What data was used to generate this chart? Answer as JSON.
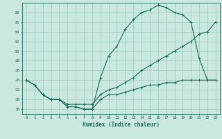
{
  "xlabel": "Humidex (Indice chaleur)",
  "ylabel": "",
  "bg_color": "#c8e8e0",
  "line_color": "#1a6b5a",
  "grid_color": "#a0c8c0",
  "xlim": [
    -0.5,
    23.5
  ],
  "ylim": [
    17,
    40
  ],
  "yticks": [
    18,
    20,
    22,
    24,
    26,
    28,
    30,
    32,
    34,
    36,
    38
  ],
  "xticks": [
    0,
    1,
    2,
    3,
    4,
    5,
    6,
    7,
    8,
    9,
    10,
    11,
    12,
    13,
    14,
    15,
    16,
    17,
    18,
    19,
    20,
    21,
    22,
    23
  ],
  "line_max": {
    "x": [
      0,
      1,
      2,
      3,
      4,
      5,
      6,
      7,
      8,
      9,
      10,
      11,
      12,
      13,
      14,
      15,
      16,
      17,
      18,
      19,
      20,
      21,
      22,
      23
    ],
    "y": [
      24,
      23,
      21,
      20,
      20,
      18.5,
      18.5,
      18,
      18,
      24.5,
      29,
      31,
      34.5,
      36.5,
      38,
      38.5,
      39.5,
      39,
      38,
      37.5,
      36,
      28.5,
      24,
      24
    ]
  },
  "line_mid": {
    "x": [
      0,
      1,
      2,
      3,
      4,
      5,
      6,
      7,
      8,
      9,
      10,
      11,
      12,
      13,
      14,
      15,
      16,
      17,
      18,
      19,
      20,
      21,
      22,
      23
    ],
    "y": [
      24,
      23,
      21,
      20,
      20,
      19,
      19,
      19,
      19,
      21,
      22,
      22.5,
      23.5,
      24.5,
      26,
      27,
      28,
      29,
      30,
      31,
      32,
      33.5,
      34,
      36
    ]
  },
  "line_min": {
    "x": [
      0,
      1,
      2,
      3,
      4,
      5,
      6,
      7,
      8,
      9,
      10,
      11,
      12,
      13,
      14,
      15,
      16,
      17,
      18,
      19,
      20,
      21,
      22,
      23
    ],
    "y": [
      24,
      23,
      21,
      20,
      20,
      18.5,
      18.5,
      18,
      18,
      20,
      21,
      21,
      21.5,
      22,
      22.5,
      23,
      23,
      23.5,
      23.5,
      24,
      24,
      24,
      24,
      24
    ]
  }
}
